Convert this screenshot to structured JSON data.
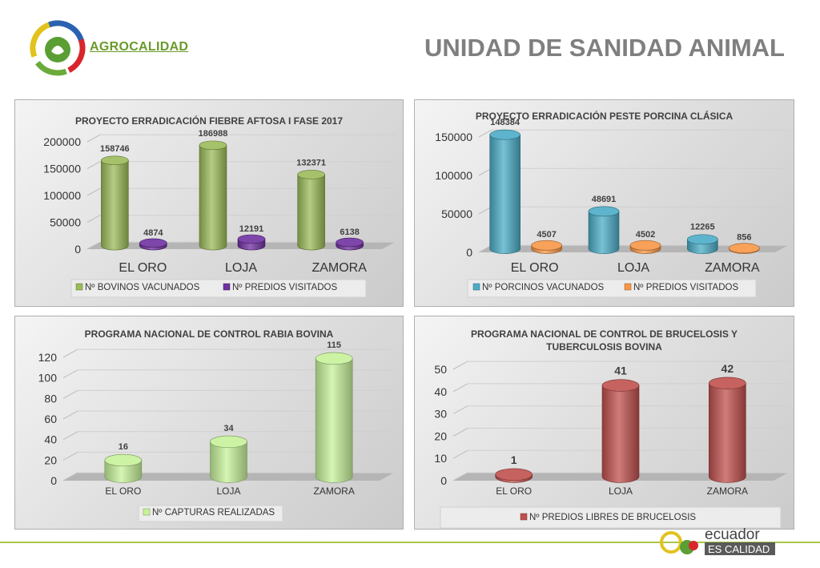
{
  "header": {
    "brand": "AGROCALIDAD",
    "title": "UNIDAD DE SANIDAD ANIMAL"
  },
  "footer": {
    "brand_top": "ecuador",
    "brand_bottom": "ES CALIDAD"
  },
  "colors": {
    "green": "#9bbb59",
    "purple": "#7030a0",
    "blue": "#4bacc6",
    "orange": "#f79646",
    "lightgreen": "#c6f29a",
    "red": "#c0504d"
  },
  "chart_data": [
    {
      "type": "bar",
      "title": "PROYECTO ERRADICACIÓN FIEBRE AFTOSA I FASE 2017",
      "categories": [
        "EL ORO",
        "LOJA",
        "ZAMORA"
      ],
      "ylim": [
        0,
        200000
      ],
      "yticks": [
        "0",
        "50000",
        "100000",
        "150000",
        "200000"
      ],
      "series": [
        {
          "name": "Nº BOVINOS VACUNADOS",
          "values": [
            158746,
            186988,
            132371
          ],
          "labels": [
            "158746",
            "186988",
            "132371"
          ],
          "color": "#9bbb59"
        },
        {
          "name": "Nº PREDIOS VISITADOS",
          "values": [
            4874,
            12191,
            6138
          ],
          "labels": [
            "4874",
            "12191",
            "6138"
          ],
          "color": "#7030a0"
        }
      ],
      "legend": "bottom"
    },
    {
      "type": "bar",
      "title": "PROYECTO ERRADICACIÓN PESTE PORCINA CLÁSICA",
      "categories": [
        "EL ORO",
        "LOJA",
        "ZAMORA"
      ],
      "ylim": [
        0,
        150000
      ],
      "yticks": [
        "0",
        "50000",
        "100000",
        "150000"
      ],
      "series": [
        {
          "name": "Nº PORCINOS VACUNADOS",
          "values": [
            148384,
            48691,
            12265
          ],
          "labels": [
            "148384",
            "48691",
            "12265"
          ],
          "color": "#4bacc6"
        },
        {
          "name": "Nº PREDIOS VISITADOS",
          "values": [
            4507,
            4502,
            856
          ],
          "labels": [
            "4507",
            "4502",
            "856"
          ],
          "color": "#f79646"
        }
      ],
      "legend": "bottom"
    },
    {
      "type": "bar",
      "title": "PROGRAMA NACIONAL DE CONTROL RABIA BOVINA",
      "categories": [
        "EL ORO",
        "LOJA",
        "ZAMORA"
      ],
      "ylim": [
        0,
        120
      ],
      "yticks": [
        "0",
        "20",
        "40",
        "60",
        "80",
        "100",
        "120"
      ],
      "series": [
        {
          "name": "Nº CAPTURAS REALIZADAS",
          "values": [
            16,
            34,
            115
          ],
          "labels": [
            "16",
            "34",
            "115"
          ],
          "color": "#c6f29a"
        }
      ],
      "legend": "bottom"
    },
    {
      "type": "bar",
      "title": "PROGRAMA NACIONAL DE CONTROL DE BRUCELOSIS Y TUBERCULOSIS BOVINA",
      "categories": [
        "EL ORO",
        "LOJA",
        "ZAMORA"
      ],
      "ylim": [
        0,
        50
      ],
      "yticks": [
        "0",
        "10",
        "20",
        "30",
        "40",
        "50"
      ],
      "series": [
        {
          "name": "Nº PREDIOS LIBRES DE BRUCELOSIS",
          "values": [
            1,
            41,
            42
          ],
          "labels": [
            "1",
            "41",
            "42"
          ],
          "color": "#c0504d"
        }
      ],
      "legend": "bottom"
    }
  ]
}
